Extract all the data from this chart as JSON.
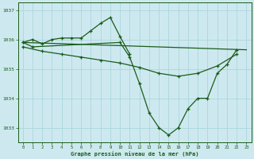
{
  "background_color": "#cde9ef",
  "grid_color": "#b0d8e0",
  "line_color": "#1a5c1a",
  "marker_color": "#1a5c1a",
  "xlabel": "Graphe pression niveau de la mer (hPa)",
  "ylim": [
    1032.5,
    1037.25
  ],
  "xlim": [
    -0.5,
    23.5
  ],
  "yticks": [
    1033,
    1034,
    1035,
    1036,
    1037
  ],
  "xticks": [
    0,
    1,
    2,
    3,
    4,
    5,
    6,
    7,
    8,
    9,
    10,
    11,
    12,
    13,
    14,
    15,
    16,
    17,
    18,
    19,
    20,
    21,
    22,
    23
  ],
  "series": [
    {
      "x": [
        0,
        1,
        2,
        3,
        4,
        5,
        6,
        7,
        8,
        9,
        10,
        11
      ],
      "y": [
        1035.9,
        1036.0,
        1035.85,
        1036.0,
        1036.05,
        1036.05,
        1036.05,
        1036.3,
        1036.55,
        1036.75,
        1036.1,
        1035.5
      ]
    },
    {
      "x": [
        0,
        23
      ],
      "y": [
        1035.9,
        1035.65
      ]
    },
    {
      "x": [
        0,
        2,
        4,
        6,
        8,
        10,
        12,
        14,
        16,
        18,
        20,
        22
      ],
      "y": [
        1035.75,
        1035.6,
        1035.5,
        1035.4,
        1035.3,
        1035.2,
        1035.05,
        1034.85,
        1034.75,
        1034.85,
        1035.1,
        1035.5
      ]
    },
    {
      "x": [
        0,
        1,
        10,
        11,
        12,
        13,
        14,
        15,
        16,
        17,
        18,
        19,
        20,
        21,
        22
      ],
      "y": [
        1035.9,
        1035.75,
        1035.9,
        1035.4,
        1034.5,
        1033.5,
        1033.0,
        1032.75,
        1033.0,
        1033.65,
        1034.0,
        1034.0,
        1034.85,
        1035.15,
        1035.65
      ]
    }
  ]
}
